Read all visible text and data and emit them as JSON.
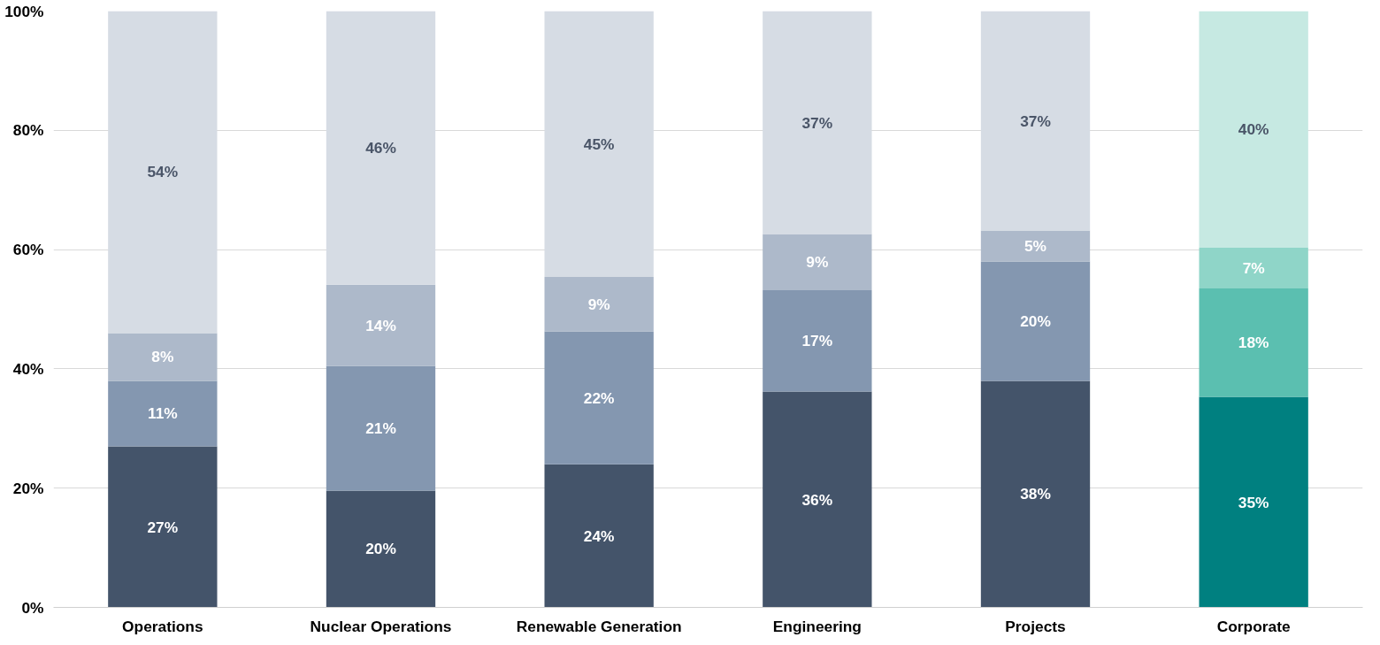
{
  "chart_data": {
    "type": "bar",
    "stacked": true,
    "categories": [
      "Operations",
      "Nuclear Operations",
      "Renewable Generation",
      "Engineering",
      "Projects",
      "Corporate"
    ],
    "series": [
      {
        "colors": [
          "#44546a",
          "#44546a",
          "#44546a",
          "#44546a",
          "#44546a",
          "#008080"
        ],
        "values": [
          27,
          19.6,
          24,
          36.2,
          38,
          35.3
        ],
        "value_labels": [
          "27%",
          "20%",
          "24%",
          "36%",
          "38%",
          "35%"
        ]
      },
      {
        "colors": [
          "#8497b0",
          "#8497b0",
          "#8497b0",
          "#8497b0",
          "#8497b0",
          "#5bbfb0"
        ],
        "values": [
          11,
          20.9,
          22.3,
          17,
          20,
          18.2
        ],
        "value_labels": [
          "11%",
          "21%",
          "22%",
          "17%",
          "20%",
          "18%"
        ]
      },
      {
        "colors": [
          "#adb9ca",
          "#adb9ca",
          "#adb9ca",
          "#adb9ca",
          "#adb9ca",
          "#8fd5c8"
        ],
        "values": [
          8,
          13.6,
          9.1,
          9.4,
          5.2,
          6.8
        ],
        "value_labels": [
          "8%",
          "14%",
          "9%",
          "9%",
          "5%",
          "7%"
        ]
      },
      {
        "colors": [
          "#d6dce4",
          "#d6dce4",
          "#d6dce4",
          "#d6dce4",
          "#d6dce4",
          "#c6e9e2"
        ],
        "values": [
          54,
          45.9,
          44.6,
          37.4,
          36.8,
          39.7
        ],
        "value_labels": [
          "54%",
          "46%",
          "45%",
          "37%",
          "37%",
          "40%"
        ]
      }
    ],
    "ylim": [
      0,
      100
    ],
    "yticks": [
      {
        "value": 0,
        "label": "0%"
      },
      {
        "value": 20,
        "label": "20%"
      },
      {
        "value": 40,
        "label": "40%"
      },
      {
        "value": 60,
        "label": "60%"
      },
      {
        "value": 80,
        "label": "80%"
      },
      {
        "value": 100,
        "label": "100%"
      }
    ],
    "grid": "y"
  }
}
